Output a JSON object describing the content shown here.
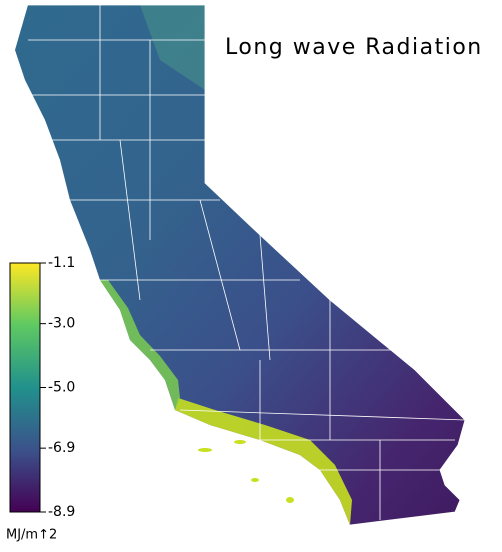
{
  "title": "Long wave Radiation",
  "colorbar": {
    "lim": [
      -8.9,
      -1.1
    ],
    "ticks": [
      -1.1,
      {
        "value": -3,
        "label": "-3.0"
      },
      {
        "value": -5,
        "label": "-5.0"
      },
      -6.9,
      -8.9
    ],
    "unit": "MJ/m↑2"
  }
}
